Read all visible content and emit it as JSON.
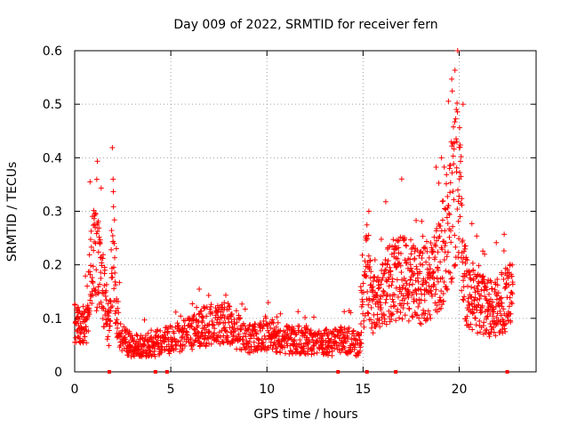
{
  "chart_data": {
    "type": "scatter",
    "title": "Day 009 of 2022, SRMTID for receiver fern",
    "xlabel": "GPS time / hours",
    "ylabel": "SRMTID / TECUs",
    "xlim": [
      0,
      24
    ],
    "ylim": [
      0,
      0.6
    ],
    "xticks": [
      0,
      5,
      10,
      15,
      20
    ],
    "yticks": [
      0,
      0.1,
      0.2,
      0.3,
      0.4,
      0.5,
      0.6
    ],
    "xtick_labels": [
      "0",
      "5",
      "10",
      "15",
      "20"
    ],
    "ytick_labels": [
      "0",
      "0.1",
      "0.2",
      "0.3",
      "0.4",
      "0.5",
      "0.6"
    ],
    "grid": true,
    "marker": "+",
    "color": "#ff0000",
    "sample_step_hours": 0.01,
    "series": [
      {
        "name": "SRMTID",
        "envelope_description": "approximate mean level by hour",
        "x": [
          0,
          0.3,
          0.6,
          0.9,
          1.2,
          1.5,
          1.8,
          2.0,
          2.2,
          2.5,
          3,
          4,
          5,
          6,
          7,
          8,
          9,
          10,
          11,
          12,
          13,
          14,
          14.8,
          15.2,
          15.5,
          16,
          16.5,
          17,
          17.5,
          18,
          18.5,
          19,
          19.5,
          19.8,
          20,
          20.2,
          20.5,
          21,
          21.5,
          22,
          22.5,
          22.8
        ],
        "y": [
          0.1,
          0.08,
          0.09,
          0.22,
          0.2,
          0.15,
          0.08,
          0.25,
          0.1,
          0.06,
          0.05,
          0.05,
          0.06,
          0.07,
          0.09,
          0.09,
          0.06,
          0.07,
          0.06,
          0.06,
          0.05,
          0.06,
          0.05,
          0.2,
          0.12,
          0.15,
          0.17,
          0.18,
          0.17,
          0.16,
          0.18,
          0.2,
          0.28,
          0.35,
          0.4,
          0.18,
          0.14,
          0.13,
          0.12,
          0.12,
          0.14,
          0.16
        ]
      }
    ],
    "notable_points": [
      {
        "x": 0.8,
        "y": 0.355
      },
      {
        "x": 2.0,
        "y": 0.36
      },
      {
        "x": 15.3,
        "y": 0.3
      },
      {
        "x": 19.5,
        "y": 0.38
      },
      {
        "x": 20.2,
        "y": 0.5
      }
    ],
    "zero_markers_x": [
      1.8,
      4.2,
      4.8,
      13.7,
      15.2,
      16.7,
      22.5
    ]
  }
}
